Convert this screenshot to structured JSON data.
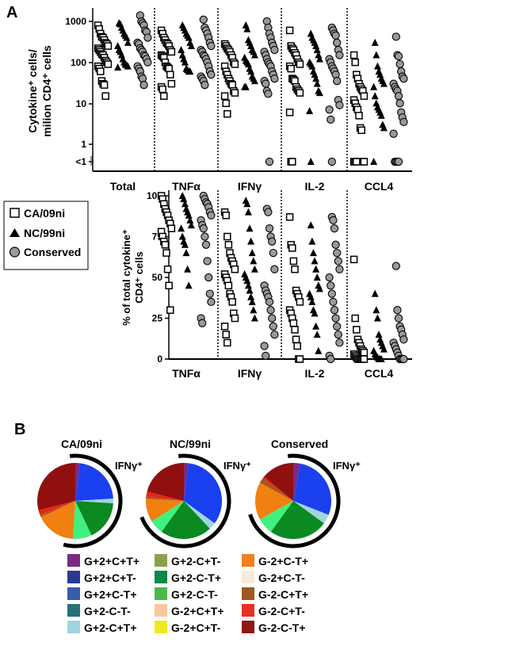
{
  "chart_data": [
    {
      "type": "scatter",
      "panel": "A",
      "ylabel": [
        "Cytokine⁺ cells/",
        "milion CD4⁺ cells"
      ],
      "yscale": "log",
      "ylim": [
        1,
        2000
      ],
      "yticks": [
        "1000",
        "100",
        "10",
        "1",
        "<1"
      ],
      "categories": [
        "Total",
        "TNFα",
        "IFNγ",
        "IL-2",
        "CCL4"
      ],
      "series_names": [
        "CA/09ni",
        "NC/99ni",
        "Conserved"
      ],
      "note": "0 denotes <1",
      "values": [
        [
          [
            800,
            650,
            500,
            420,
            400,
            350,
            300,
            280,
            250,
            220,
            200,
            180,
            160,
            150,
            130,
            110,
            100,
            90,
            80,
            70,
            60,
            35,
            30,
            28,
            15
          ],
          [
            900,
            850,
            700,
            600,
            500,
            450,
            400,
            300,
            250,
            200,
            180,
            150,
            120,
            100,
            90,
            85,
            80,
            75
          ],
          [
            1400,
            1000,
            900,
            800,
            600,
            550,
            400,
            300,
            280,
            220,
            200,
            180,
            150,
            140,
            120,
            100,
            80,
            70,
            60,
            45,
            40,
            28
          ]
        ],
        [
          [
            600,
            500,
            400,
            350,
            300,
            280,
            250,
            200,
            180,
            150,
            140,
            130,
            100,
            80,
            75,
            70,
            50,
            30,
            25,
            22,
            15
          ],
          [
            800,
            700,
            600,
            500,
            450,
            400,
            300,
            250,
            200,
            150,
            120,
            100,
            70,
            65,
            60,
            60
          ],
          [
            1100,
            700,
            600,
            500,
            400,
            300,
            250,
            200,
            180,
            150,
            140,
            120,
            100,
            80,
            60,
            50,
            45,
            40,
            35,
            28
          ]
        ],
        [
          [
            280,
            250,
            220,
            200,
            180,
            150,
            130,
            100,
            90,
            80,
            60,
            50,
            40,
            35,
            30,
            28,
            20,
            18,
            15,
            10,
            5.5
          ],
          [
            800,
            650,
            350,
            300,
            250,
            200,
            180,
            150,
            130,
            110,
            100,
            90,
            70,
            60,
            45,
            40,
            35,
            25,
            25
          ],
          [
            1000,
            700,
            500,
            400,
            300,
            250,
            200,
            180,
            150,
            120,
            100,
            90,
            80,
            60,
            50,
            40,
            35,
            30,
            20,
            17,
            0
          ]
        ],
        [
          [
            600,
            250,
            220,
            200,
            170,
            150,
            120,
            100,
            90,
            80,
            70,
            40,
            38,
            35,
            25,
            22,
            20,
            18,
            6,
            0,
            0
          ],
          [
            500,
            400,
            350,
            300,
            250,
            200,
            150,
            120,
            100,
            90,
            80,
            60,
            50,
            40,
            30,
            20,
            18,
            6.5,
            0
          ],
          [
            700,
            600,
            500,
            450,
            300,
            200,
            150,
            120,
            100,
            80,
            70,
            60,
            50,
            35,
            12,
            9,
            7,
            4,
            0
          ]
        ],
        [
          [
            150,
            100,
            50,
            40,
            30,
            25,
            22,
            20,
            15,
            12,
            10,
            8,
            7,
            5,
            2.5,
            2.2,
            0,
            0,
            0,
            0,
            0
          ],
          [
            300,
            150,
            80,
            60,
            50,
            40,
            35,
            30,
            25,
            15,
            10,
            8,
            7,
            6,
            5,
            3,
            2.5,
            0
          ],
          [
            420,
            150,
            140,
            90,
            60,
            45,
            40,
            30,
            25,
            22,
            20,
            15,
            10,
            6,
            4.5,
            3.5,
            1.8,
            0,
            0,
            0,
            0
          ]
        ]
      ]
    },
    {
      "type": "scatter",
      "panel": "A-lower",
      "ylabel": [
        "% of total cytokine⁺",
        "CD4⁺ cells"
      ],
      "ylim": [
        0,
        100
      ],
      "yticks": [
        "100",
        "75",
        "50",
        "25",
        "0"
      ],
      "categories": [
        "TNFα",
        "IFNγ",
        "IL-2",
        "CCL4"
      ],
      "values": [
        [
          [
            100,
            98,
            95,
            92,
            90,
            88,
            85,
            83,
            80,
            78,
            75,
            72,
            70,
            65,
            55,
            45,
            30
          ],
          [
            100,
            98,
            95,
            92,
            90,
            88,
            85,
            82,
            80,
            75,
            72,
            70,
            65,
            55,
            45
          ],
          [
            100,
            98,
            96,
            95,
            93,
            90,
            88,
            85,
            82,
            80,
            75,
            70,
            60,
            50,
            40,
            35,
            25,
            22
          ]
        ],
        [
          [
            90,
            88,
            75,
            70,
            65,
            62,
            60,
            58,
            55,
            52,
            50,
            48,
            45,
            40,
            38,
            35,
            28,
            25,
            20,
            15,
            10
          ],
          [
            97,
            95,
            90,
            80,
            72,
            65,
            60,
            55,
            52,
            50,
            48,
            45,
            42,
            38,
            35,
            30,
            25
          ],
          [
            92,
            90,
            80,
            75,
            72,
            65,
            55,
            45,
            42,
            40,
            38,
            35,
            30,
            25,
            20,
            15,
            8,
            2
          ]
        ],
        [
          [
            87,
            70,
            68,
            60,
            55,
            42,
            40,
            38,
            35,
            30,
            28,
            25,
            22,
            18,
            12,
            8,
            0,
            0
          ],
          [
            82,
            72,
            65,
            60,
            55,
            50,
            45,
            43,
            40,
            38,
            35,
            30,
            28,
            20,
            15,
            5
          ],
          [
            87,
            85,
            80,
            70,
            65,
            60,
            55,
            50,
            45,
            40,
            35,
            30,
            25,
            20,
            15,
            10,
            2,
            0
          ]
        ],
        [
          [
            61,
            25,
            18,
            12,
            10,
            8,
            6,
            5,
            4,
            3,
            2,
            1,
            0,
            0,
            0,
            0,
            0,
            0
          ],
          [
            40,
            30,
            25,
            15,
            12,
            10,
            8,
            6,
            5,
            3,
            2,
            1,
            0,
            0,
            0
          ],
          [
            57,
            30,
            25,
            20,
            18,
            15,
            12,
            10,
            8,
            6,
            4,
            2,
            0,
            0,
            0,
            0
          ]
        ]
      ]
    },
    {
      "type": "pie",
      "panel": "B",
      "arc_label": "IFNγ⁺",
      "pies": [
        {
          "title": "CA/09ni",
          "slices": [
            2,
            22,
            2,
            17,
            8,
            17,
            1,
            2,
            29
          ]
        },
        {
          "title": "NC/99ni",
          "slices": [
            2,
            33,
            3,
            22,
            6,
            10,
            1,
            2,
            21
          ]
        },
        {
          "title": "Conserved",
          "slices": [
            3,
            28,
            4,
            25,
            7,
            16,
            2,
            1,
            14
          ]
        }
      ],
      "slice_colors": [
        "#7b2a7f",
        "#1a40f0",
        "#a0d4e0",
        "#0a8a20",
        "#40f080",
        "#f08010",
        "#a05820",
        "#f02010",
        "#901010"
      ],
      "ifng_positive_slices": 5
    }
  ],
  "panel_labels": {
    "a": "A",
    "b": "B"
  },
  "legend_a": [
    {
      "label": "CA/09ni",
      "symbol": "square"
    },
    {
      "label": "NC/99ni",
      "symbol": "triangle"
    },
    {
      "label": "Conserved",
      "symbol": "circle"
    }
  ],
  "legend_b": [
    {
      "label": "G+2+C+T+",
      "color": "#7b2a7f"
    },
    {
      "label": "G+2+C+T-",
      "color": "#2a3990"
    },
    {
      "label": "G+2+C-T+",
      "color": "#3b5aa8"
    },
    {
      "label": "G+2-C-T-",
      "color": "#2a7078"
    },
    {
      "label": "G+2-C+T+",
      "color": "#a0d4e0"
    },
    {
      "label": "G+2-C+T-",
      "color": "#8aa050"
    },
    {
      "label": "G+2-C-T+",
      "color": "#0a8a48"
    },
    {
      "label": "G+2-C-T-",
      "color": "#4cb84c"
    },
    {
      "label": "G-2+C+T+",
      "color": "#f8c8a0"
    },
    {
      "label": "G-2+C+T-",
      "color": "#f0e820"
    },
    {
      "label": "G-2+C-T+",
      "color": "#f08020"
    },
    {
      "label": "G-2+C-T-",
      "color": "#f8ecd8"
    },
    {
      "label": "G-2-C+T+",
      "color": "#a05820"
    },
    {
      "label": "G-2-C+T-",
      "color": "#e83020"
    },
    {
      "label": "G-2-C-T+",
      "color": "#901818"
    }
  ]
}
